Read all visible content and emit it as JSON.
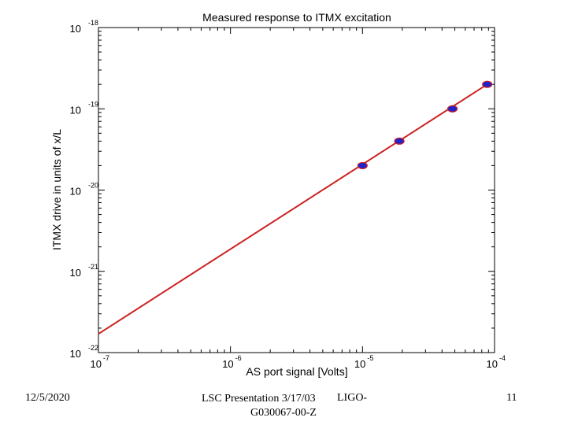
{
  "chart_data": {
    "type": "scatter",
    "title": "Measured response to ITMX excitation",
    "xlabel": "AS port signal [Volts]",
    "ylabel": "ITMX drive in units of x/L",
    "x_scale": "log",
    "y_scale": "log",
    "xlim": [
      1e-07,
      0.0001
    ],
    "ylim": [
      1e-22,
      1e-18
    ],
    "x_ticks": [
      {
        "base": "10",
        "exp": "-7"
      },
      {
        "base": "10",
        "exp": "-6"
      },
      {
        "base": "10",
        "exp": "-5"
      },
      {
        "base": "10",
        "exp": "-4"
      }
    ],
    "y_ticks": [
      {
        "base": "10",
        "exp": "-22"
      },
      {
        "base": "10",
        "exp": "-21"
      },
      {
        "base": "10",
        "exp": "-20"
      },
      {
        "base": "10",
        "exp": "-19"
      },
      {
        "base": "10",
        "exp": "-18"
      }
    ],
    "grid": false,
    "series": [
      {
        "kind": "points",
        "color": "#2222cc",
        "edge_color": "#cc2222",
        "points": [
          {
            "x": 1e-05,
            "y": 2e-20
          },
          {
            "x": 1.9e-05,
            "y": 4e-20
          },
          {
            "x": 4.8e-05,
            "y": 1e-19
          },
          {
            "x": 8.8e-05,
            "y": 2e-19
          }
        ]
      },
      {
        "kind": "fit-line",
        "color": "#cc2222",
        "points": [
          {
            "x": 1e-07,
            "y": 1.7e-22
          },
          {
            "x": 8.8e-05,
            "y": 2e-19
          }
        ]
      }
    ]
  },
  "footer": {
    "date": "12/5/2020",
    "presentation_line1": "LSC Presentation 3/17/03",
    "presentation_line2": "G030067-00-Z",
    "ligo": "LIGO-",
    "page_number": "11"
  }
}
